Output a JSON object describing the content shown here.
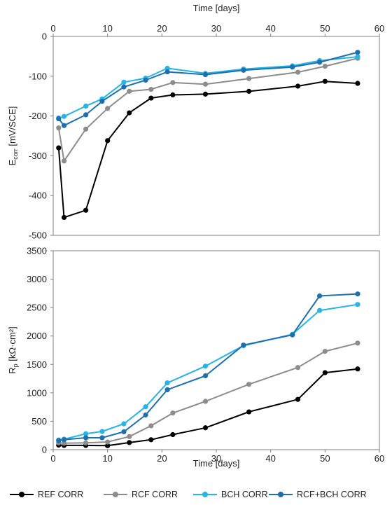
{
  "chart_data": [
    {
      "type": "line",
      "xlabel": "Time [days]",
      "xlabel_position": "top",
      "ylabel": "E",
      "ylabel_sub": "corr",
      "ylabel_unit": " [mV/SCE]",
      "xlim": [
        0,
        60
      ],
      "ylim": [
        -500,
        0
      ],
      "xticks": [
        0,
        10,
        20,
        30,
        40,
        50,
        60
      ],
      "yticks": [
        -500,
        -400,
        -300,
        -200,
        -100,
        0
      ],
      "grid": false,
      "series": [
        {
          "name": "REF CORR",
          "color": "#000000",
          "x": [
            1,
            2,
            6,
            10,
            14,
            18,
            22,
            28,
            36,
            45,
            50,
            56
          ],
          "y": [
            -280,
            -455,
            -437,
            -262,
            -192,
            -155,
            -147,
            -145,
            -138,
            -125,
            -113,
            -118
          ]
        },
        {
          "name": "RCF CORR",
          "color": "#8c8c8c",
          "x": [
            1,
            2,
            6,
            10,
            14,
            18,
            22,
            28,
            36,
            45,
            50,
            56
          ],
          "y": [
            -230,
            -313,
            -233,
            -181,
            -138,
            -133,
            -116,
            -120,
            -106,
            -90,
            -75,
            -55
          ]
        },
        {
          "name": "BCH CORR",
          "color": "#24b4e8",
          "x": [
            1,
            2,
            6,
            9,
            13,
            17,
            21,
            28,
            35,
            44,
            49,
            56
          ],
          "y": [
            -205,
            -201,
            -175,
            -157,
            -115,
            -105,
            -80,
            -93,
            -82,
            -74,
            -61,
            -51
          ]
        },
        {
          "name": "RCF+BCH CORR",
          "color": "#1d6fb0",
          "x": [
            1,
            2,
            6,
            9,
            13,
            17,
            21,
            28,
            35,
            44,
            49,
            56
          ],
          "y": [
            -207,
            -224,
            -197,
            -163,
            -127,
            -110,
            -89,
            -96,
            -85,
            -77,
            -65,
            -40
          ]
        }
      ]
    },
    {
      "type": "line",
      "xlabel": "Time [days]",
      "xlabel_position": "bottom",
      "ylabel": "R",
      "ylabel_sub": "p",
      "ylabel_unit": " [kΩ·cm²]",
      "xlim": [
        0,
        60
      ],
      "ylim": [
        0,
        3500
      ],
      "xticks": [
        0,
        10,
        20,
        30,
        40,
        50,
        60
      ],
      "yticks": [
        0,
        500,
        1000,
        1500,
        2000,
        2500,
        3000,
        3500
      ],
      "grid": false,
      "series": [
        {
          "name": "REF CORR",
          "color": "#000000",
          "x": [
            1,
            2,
            6,
            10,
            14,
            18,
            22,
            28,
            36,
            45,
            50,
            56
          ],
          "y": [
            80,
            75,
            75,
            70,
            125,
            175,
            265,
            385,
            665,
            885,
            1355,
            1420
          ]
        },
        {
          "name": "RCF CORR",
          "color": "#8c8c8c",
          "x": [
            1,
            2,
            6,
            10,
            14,
            18,
            22,
            28,
            36,
            45,
            50,
            56
          ],
          "y": [
            120,
            115,
            120,
            135,
            230,
            420,
            645,
            850,
            1150,
            1445,
            1730,
            1875
          ]
        },
        {
          "name": "BCH CORR",
          "color": "#24b4e8",
          "x": [
            1,
            2,
            6,
            9,
            13,
            17,
            21,
            28,
            35,
            44,
            49,
            56
          ],
          "y": [
            170,
            185,
            280,
            320,
            455,
            755,
            1175,
            1470,
            1830,
            2030,
            2450,
            2555
          ]
        },
        {
          "name": "RCF+BCH CORR",
          "color": "#1d6fb0",
          "x": [
            1,
            2,
            6,
            9,
            13,
            17,
            21,
            28,
            35,
            44,
            49,
            56
          ],
          "y": [
            160,
            175,
            210,
            210,
            315,
            610,
            1055,
            1300,
            1840,
            2020,
            2705,
            2740
          ]
        }
      ]
    }
  ],
  "legend": {
    "placement": "bottom",
    "items": [
      {
        "label": "REF CORR",
        "color": "#000000"
      },
      {
        "label": "RCF CORR",
        "color": "#8c8c8c"
      },
      {
        "label": "BCH CORR",
        "color": "#24b4e8"
      },
      {
        "label": "RCF+BCH CORR",
        "color": "#1d6fb0"
      }
    ]
  }
}
